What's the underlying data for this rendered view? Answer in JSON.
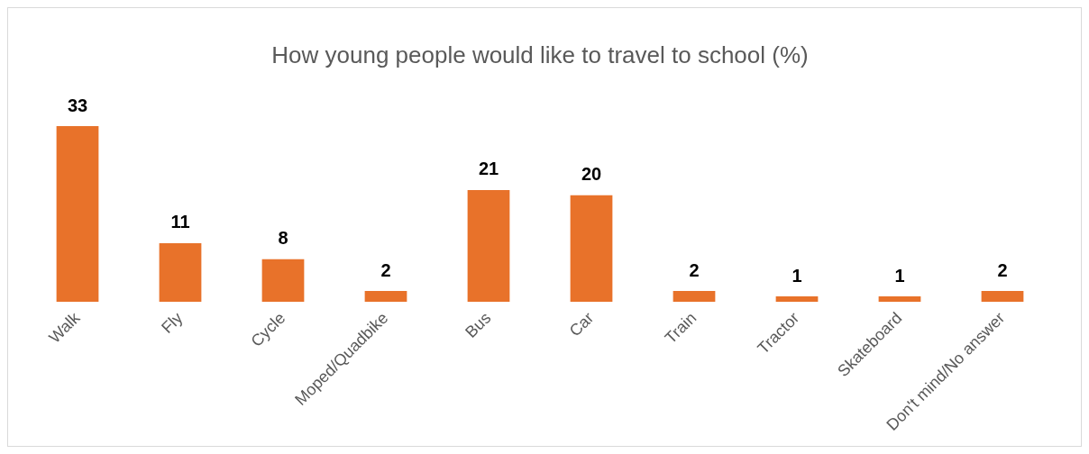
{
  "chart_data": {
    "type": "bar",
    "title": "How young people would like to travel to school (%)",
    "categories": [
      "Walk",
      "Fly",
      "Cycle",
      "Moped/Quadbike",
      "Bus",
      "Car",
      "Train",
      "Tractor",
      "Skateboard",
      "Don't mind/No answer"
    ],
    "values": [
      33,
      11,
      8,
      2,
      21,
      20,
      2,
      1,
      1,
      2
    ],
    "color": "#e8722a",
    "data_labels": true,
    "grid": false,
    "legend": false
  }
}
